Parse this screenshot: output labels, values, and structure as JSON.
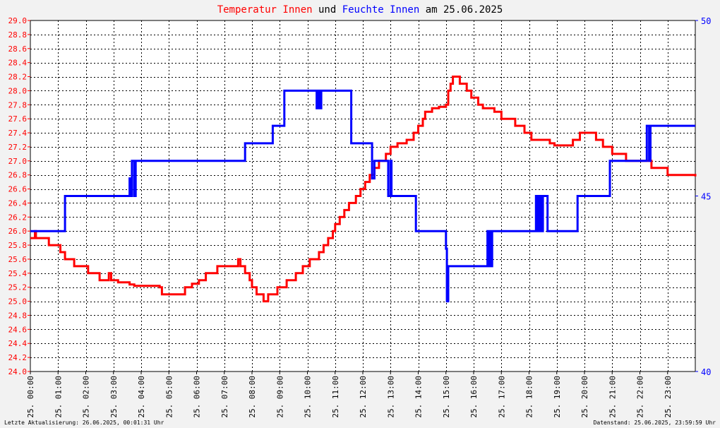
{
  "title": {
    "part1": "Temperatur Innen",
    "part2": " und ",
    "part3": "Feuchte Innen",
    "part4": " am 25.06.2025"
  },
  "footer": {
    "left": "Letzte Aktualisierung: 26.06.2025, 00:01:31 Uhr",
    "right": "Datenstand: 25.06.2025, 23:59:59 Uhr"
  },
  "colors": {
    "temperature": "#ff0000",
    "humidity": "#0000ff",
    "background": "#f2f2f2",
    "plot_background": "#ffffff",
    "grid": "#000000"
  },
  "chart_data": {
    "type": "line",
    "grid": true,
    "x_ticks": [
      "25. 00:00",
      "25. 01:00",
      "25. 02:00",
      "25. 03:00",
      "25. 04:00",
      "25. 05:00",
      "25. 06:00",
      "25. 07:00",
      "25. 08:00",
      "25. 09:00",
      "25. 10:00",
      "25. 11:00",
      "25. 12:00",
      "25. 13:00",
      "25. 14:00",
      "25. 15:00",
      "25. 16:00",
      "25. 17:00",
      "25. 18:00",
      "25. 19:00",
      "25. 20:00",
      "25. 21:00",
      "25. 22:00",
      "25. 23:00"
    ],
    "xlim": [
      "25.06.2025 00:00",
      "25.06.2025 24:00"
    ],
    "y_left": {
      "lim": [
        24.0,
        29.0
      ],
      "ticks": [
        "24.0",
        "24.2",
        "24.4",
        "24.6",
        "24.8",
        "25.0",
        "25.2",
        "25.4",
        "25.6",
        "25.8",
        "26.0",
        "26.2",
        "26.4",
        "26.6",
        "26.8",
        "27.0",
        "27.2",
        "27.4",
        "27.6",
        "27.8",
        "28.0",
        "28.2",
        "28.4",
        "28.6",
        "28.8",
        "29.0"
      ],
      "color": "#ff0000"
    },
    "y_right": {
      "lim": [
        40,
        50
      ],
      "ticks": [
        "40",
        "45",
        "50"
      ],
      "color": "#0000ff"
    },
    "series": [
      {
        "name": "Temperatur Innen",
        "axis": "left",
        "color": "#ff0000",
        "step": true,
        "points": [
          [
            "00:00",
            25.9
          ],
          [
            "00:10",
            26.0
          ],
          [
            "00:12",
            25.9
          ],
          [
            "00:40",
            25.8
          ],
          [
            "01:05",
            25.7
          ],
          [
            "01:15",
            25.6
          ],
          [
            "01:35",
            25.5
          ],
          [
            "02:05",
            25.4
          ],
          [
            "02:30",
            25.3
          ],
          [
            "02:50",
            25.4
          ],
          [
            "02:55",
            25.3
          ],
          [
            "03:10",
            25.27
          ],
          [
            "03:35",
            25.24
          ],
          [
            "03:45",
            25.22
          ],
          [
            "04:40",
            25.2
          ],
          [
            "04:45",
            25.1
          ],
          [
            "05:35",
            25.2
          ],
          [
            "05:50",
            25.25
          ],
          [
            "06:05",
            25.3
          ],
          [
            "06:20",
            25.4
          ],
          [
            "06:45",
            25.5
          ],
          [
            "07:30",
            25.6
          ],
          [
            "07:35",
            25.5
          ],
          [
            "07:45",
            25.4
          ],
          [
            "07:55",
            25.3
          ],
          [
            "08:00",
            25.2
          ],
          [
            "08:10",
            25.1
          ],
          [
            "08:25",
            25.0
          ],
          [
            "08:35",
            25.1
          ],
          [
            "08:55",
            25.2
          ],
          [
            "09:15",
            25.3
          ],
          [
            "09:35",
            25.4
          ],
          [
            "09:50",
            25.5
          ],
          [
            "10:05",
            25.6
          ],
          [
            "10:25",
            25.7
          ],
          [
            "10:35",
            25.8
          ],
          [
            "10:45",
            25.9
          ],
          [
            "10:55",
            26.0
          ],
          [
            "11:00",
            26.1
          ],
          [
            "11:10",
            26.2
          ],
          [
            "11:20",
            26.3
          ],
          [
            "11:30",
            26.4
          ],
          [
            "11:45",
            26.5
          ],
          [
            "11:55",
            26.6
          ],
          [
            "12:05",
            26.7
          ],
          [
            "12:15",
            26.8
          ],
          [
            "12:25",
            26.9
          ],
          [
            "12:35",
            27.0
          ],
          [
            "12:50",
            27.1
          ],
          [
            "13:00",
            27.2
          ],
          [
            "13:15",
            27.25
          ],
          [
            "13:35",
            27.3
          ],
          [
            "13:50",
            27.4
          ],
          [
            "14:00",
            27.5
          ],
          [
            "14:10",
            27.6
          ],
          [
            "14:15",
            27.7
          ],
          [
            "14:30",
            27.75
          ],
          [
            "14:45",
            27.77
          ],
          [
            "15:00",
            27.8
          ],
          [
            "15:05",
            28.0
          ],
          [
            "15:10",
            28.1
          ],
          [
            "15:15",
            28.2
          ],
          [
            "15:30",
            28.1
          ],
          [
            "15:45",
            28.0
          ],
          [
            "15:55",
            27.9
          ],
          [
            "16:10",
            27.8
          ],
          [
            "16:20",
            27.75
          ],
          [
            "16:45",
            27.7
          ],
          [
            "17:00",
            27.6
          ],
          [
            "17:30",
            27.5
          ],
          [
            "17:50",
            27.4
          ],
          [
            "18:05",
            27.3
          ],
          [
            "18:45",
            27.25
          ],
          [
            "18:55",
            27.22
          ],
          [
            "19:35",
            27.3
          ],
          [
            "19:50",
            27.4
          ],
          [
            "20:25",
            27.3
          ],
          [
            "20:40",
            27.2
          ],
          [
            "21:00",
            27.1
          ],
          [
            "21:30",
            27.0
          ],
          [
            "22:25",
            26.9
          ],
          [
            "23:00",
            26.8
          ],
          [
            "24:00",
            26.78
          ]
        ]
      },
      {
        "name": "Feuchte Innen",
        "axis": "right",
        "color": "#0000ff",
        "step": true,
        "points": [
          [
            "00:00",
            44.0
          ],
          [
            "01:15",
            45.0
          ],
          [
            "03:35",
            45.5
          ],
          [
            "03:38",
            45.0
          ],
          [
            "03:40",
            46.0
          ],
          [
            "03:45",
            45.0
          ],
          [
            "03:48",
            46.0
          ],
          [
            "07:45",
            46.5
          ],
          [
            "08:45",
            47.0
          ],
          [
            "09:10",
            48.0
          ],
          [
            "10:20",
            47.5
          ],
          [
            "10:22",
            48.0
          ],
          [
            "10:24",
            47.5
          ],
          [
            "10:26",
            48.0
          ],
          [
            "10:28",
            47.5
          ],
          [
            "10:30",
            48.0
          ],
          [
            "11:35",
            46.5
          ],
          [
            "12:20",
            45.5
          ],
          [
            "12:25",
            46.0
          ],
          [
            "12:55",
            45.0
          ],
          [
            "13:00",
            46.0
          ],
          [
            "13:02",
            45.0
          ],
          [
            "13:55",
            44.0
          ],
          [
            "15:00",
            43.5
          ],
          [
            "15:02",
            42.0
          ],
          [
            "15:05",
            43.0
          ],
          [
            "16:30",
            44.0
          ],
          [
            "16:32",
            43.0
          ],
          [
            "16:35",
            44.0
          ],
          [
            "16:37",
            43.0
          ],
          [
            "16:40",
            44.0
          ],
          [
            "18:15",
            45.0
          ],
          [
            "18:17",
            44.0
          ],
          [
            "18:20",
            45.0
          ],
          [
            "18:22",
            44.0
          ],
          [
            "18:25",
            45.0
          ],
          [
            "18:27",
            44.0
          ],
          [
            "18:30",
            45.0
          ],
          [
            "18:40",
            44.0
          ],
          [
            "19:45",
            45.0
          ],
          [
            "20:55",
            46.0
          ],
          [
            "22:15",
            47.0
          ],
          [
            "22:20",
            46.0
          ],
          [
            "22:23",
            47.0
          ],
          [
            "24:00",
            47.0
          ]
        ]
      }
    ]
  }
}
